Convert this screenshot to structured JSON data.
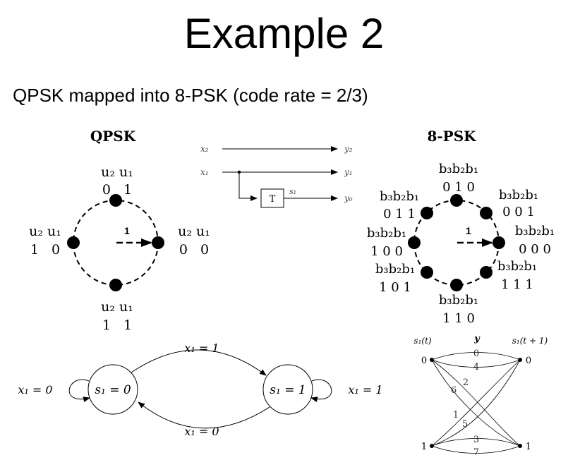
{
  "title": "Example 2",
  "subtitle": "QPSK mapped into 8-PSK (code rate = 2/3)",
  "qpsk": {
    "heading": "QPSK",
    "arrow_label": "1",
    "points": [
      {
        "label": "u₂ u₁",
        "bits": "0   1"
      },
      {
        "label": "u₂ u₁",
        "bits": "1   0"
      },
      {
        "label": "u₂ u₁",
        "bits": "0   0"
      },
      {
        "label": "u₂ u₁",
        "bits": "1   1"
      }
    ]
  },
  "encoder": {
    "x2": "x₂",
    "x1": "x₁",
    "y2": "y₂",
    "y1": "y₁",
    "y0": "y₀",
    "delay": "T",
    "state": "s₁"
  },
  "psk8": {
    "heading": "8-PSK",
    "arrow_label": "1",
    "label": "b₃b₂b₁",
    "points": [
      {
        "bits": "0 1 0"
      },
      {
        "bits": "0 0 1"
      },
      {
        "bits": "0 1 1"
      },
      {
        "bits": "0 0 0"
      },
      {
        "bits": "1 0 0"
      },
      {
        "bits": "1 1 1"
      },
      {
        "bits": "1 0 1"
      },
      {
        "bits": "1 1 0"
      }
    ]
  },
  "state_diagram": {
    "s0": "s₁ = 0",
    "s1": "s₁ = 1",
    "top_edge": "x₁ = 1",
    "bottom_edge": "x₁ = 0",
    "self_loop_s0": "x₁ = 0",
    "self_loop_s1": "x₁ = 1"
  },
  "trellis": {
    "st_label": "s₁(t)",
    "y_label": "y",
    "st1_label": "s₁(t + 1)",
    "left_states": [
      "0",
      "1"
    ],
    "right_states": [
      "0",
      "1"
    ],
    "branch_labels": [
      "0",
      "4",
      "2",
      "6",
      "1",
      "5",
      "3",
      "7"
    ]
  }
}
